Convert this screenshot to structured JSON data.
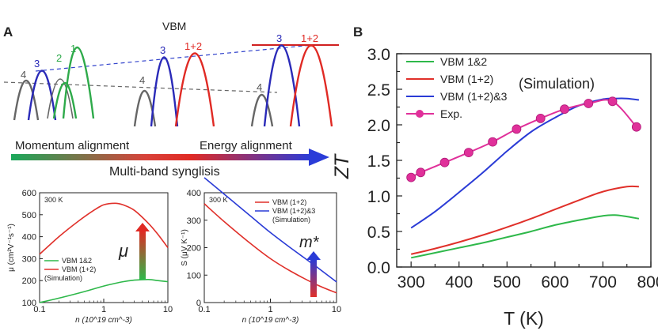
{
  "panel_a": {
    "label": "A",
    "band_title": "VBM",
    "band_labels": {
      "four": "4",
      "three": "3",
      "two": "2",
      "one": "1",
      "one_plus_two": "1+2"
    },
    "arrow_left_text": "Momentum alignment",
    "arrow_right_text": "Energy alignment",
    "arrow_bottom_text": "Multi-band synglisis"
  },
  "chart_data": [
    {
      "id": "B",
      "type": "line",
      "panel_label": "B",
      "xlabel": "T (K)",
      "ylabel": "ZT",
      "xlim": [
        270,
        800
      ],
      "ylim": [
        0,
        3.0
      ],
      "xticks": [
        300,
        400,
        500,
        600,
        700,
        800
      ],
      "yticks": [
        0.0,
        0.5,
        1.0,
        1.5,
        2.0,
        2.5,
        3.0
      ],
      "annotation": "(Simulation)",
      "legend_position": "top-left",
      "series": [
        {
          "name": "VBM 1&2",
          "color": "#2eb84a",
          "x": [
            300,
            350,
            400,
            450,
            500,
            550,
            600,
            650,
            700,
            725,
            750,
            775
          ],
          "y": [
            0.13,
            0.2,
            0.27,
            0.34,
            0.42,
            0.5,
            0.59,
            0.66,
            0.72,
            0.73,
            0.71,
            0.68
          ]
        },
        {
          "name": "VBM (1+2)",
          "color": "#e0302a",
          "x": [
            300,
            350,
            400,
            450,
            500,
            550,
            600,
            650,
            700,
            750,
            775
          ],
          "y": [
            0.18,
            0.26,
            0.35,
            0.45,
            0.56,
            0.68,
            0.81,
            0.94,
            1.06,
            1.13,
            1.13
          ]
        },
        {
          "name": "VBM (1+2)&3",
          "color": "#2a3bd6",
          "x": [
            300,
            350,
            400,
            450,
            500,
            550,
            600,
            650,
            700,
            725,
            750,
            775
          ],
          "y": [
            0.55,
            0.78,
            1.05,
            1.33,
            1.63,
            1.9,
            2.1,
            2.27,
            2.36,
            2.37,
            2.37,
            2.35
          ]
        },
        {
          "name": "Exp.",
          "color": "#e0309a",
          "markers": true,
          "x": [
            300,
            320,
            370,
            420,
            470,
            520,
            570,
            620,
            670,
            720,
            770
          ],
          "y": [
            1.26,
            1.33,
            1.47,
            1.61,
            1.76,
            1.94,
            2.09,
            2.22,
            2.3,
            2.33,
            1.97
          ]
        }
      ]
    },
    {
      "id": "mobility",
      "type": "line",
      "xscale": "log",
      "xlim": [
        0.1,
        10
      ],
      "ylim": [
        100,
        600
      ],
      "xticks": [
        0.1,
        1,
        10
      ],
      "xtick_labels": [
        "0.1",
        "1",
        "10"
      ],
      "yticks": [
        100,
        200,
        300,
        400,
        500,
        600
      ],
      "xlabel": "n (10^19 cm^-3)",
      "ylabel": "μ (cm²V⁻¹s⁻¹)",
      "temperature_label": "300 K",
      "legend": [
        "VBM 1&2",
        "VBM (1+2)",
        "(Simulation)"
      ],
      "arrow_label": "μ",
      "series": [
        {
          "name": "VBM 1&2",
          "color": "#2eb84a",
          "x": [
            0.1,
            0.2,
            0.5,
            1,
            2,
            3,
            5,
            7,
            10
          ],
          "y": [
            100,
            120,
            150,
            175,
            195,
            202,
            205,
            200,
            195
          ]
        },
        {
          "name": "VBM (1+2)",
          "color": "#e0302a",
          "x": [
            0.1,
            0.2,
            0.4,
            0.7,
            1,
            1.5,
            2,
            3,
            5,
            7,
            10
          ],
          "y": [
            320,
            400,
            470,
            520,
            545,
            552,
            545,
            520,
            460,
            410,
            350
          ]
        }
      ]
    },
    {
      "id": "seebeck",
      "type": "line",
      "xscale": "log",
      "xlim": [
        0.1,
        10
      ],
      "ylim": [
        0,
        400
      ],
      "xticks": [
        0.1,
        1,
        10
      ],
      "xtick_labels": [
        "0.1",
        "1",
        "10"
      ],
      "yticks": [
        0,
        100,
        200,
        300,
        400
      ],
      "xlabel": "n (10^19 cm^-3)",
      "ylabel": "S (μV K⁻¹)",
      "temperature_label": "300 K",
      "legend": [
        "VBM (1+2)",
        "VBM (1+2)&3",
        "(Simulation)"
      ],
      "arrow_label": "m*",
      "series": [
        {
          "name": "VBM (1+2)",
          "color": "#e0302a",
          "x": [
            0.1,
            0.2,
            0.5,
            1,
            2,
            5,
            10
          ],
          "y": [
            360,
            295,
            215,
            160,
            115,
            65,
            35
          ]
        },
        {
          "name": "VBM (1+2)&3",
          "color": "#2a3bd6",
          "x": [
            0.1,
            0.2,
            0.5,
            1,
            2,
            5,
            10
          ],
          "y": [
            455,
            395,
            315,
            255,
            200,
            130,
            75
          ]
        }
      ]
    }
  ]
}
